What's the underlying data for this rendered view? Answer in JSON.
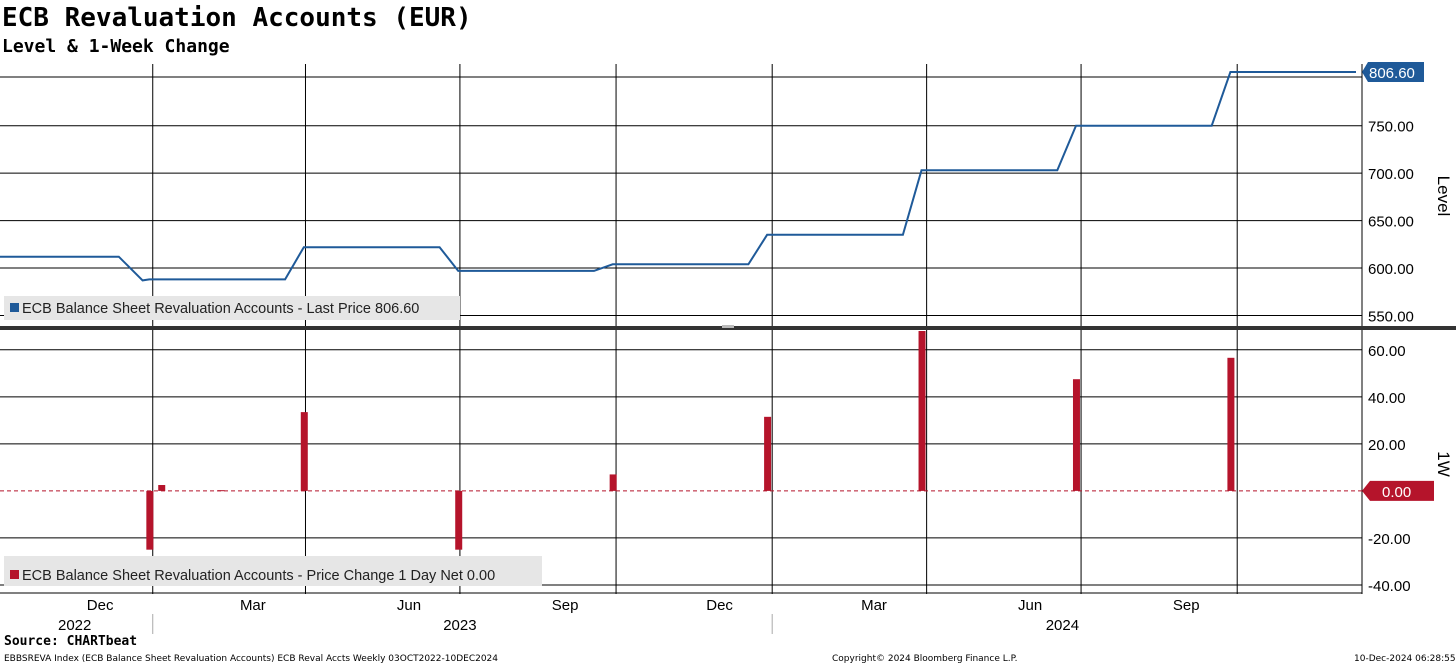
{
  "title": "ECB Revaluation Accounts (EUR)",
  "subtitle": "Level & 1-Week Change",
  "source": "Source: CHARTbeat",
  "footer": {
    "left": "EBBSREVA Index (ECB Balance Sheet Revaluation Accounts) ECB Reval Accts  Weekly 03OCT2022-10DEC2024",
    "center": "Copyright© 2024 Bloomberg Finance L.P.",
    "right": "10-Dec-2024 06:28:55"
  },
  "colors": {
    "level": "#1f5a99",
    "change": "#b5142b",
    "grid": "#000000",
    "legend_bg": "#e6e6e6"
  },
  "chart_data": [
    {
      "type": "line",
      "ylabel": "Level",
      "ylim": [
        540,
        815
      ],
      "yticks": [
        550,
        600,
        650,
        700,
        750,
        806.6
      ],
      "ytick_labels": [
        "550.00",
        "600.00",
        "650.00",
        "700.00",
        "750.00",
        "806.60"
      ],
      "last_value_label": "806.60",
      "legend": "ECB Balance Sheet Revaluation Accounts - Last Price 806.60",
      "series": [
        {
          "name": "ECB Balance Sheet Revaluation Accounts",
          "points": [
            [
              "2022-10-03",
              612
            ],
            [
              "2022-12-12",
              612
            ],
            [
              "2022-12-26",
              587
            ],
            [
              "2022-12-30",
              588
            ],
            [
              "2023-03-20",
              588
            ],
            [
              "2023-03-31",
              622
            ],
            [
              "2023-06-19",
              622
            ],
            [
              "2023-06-30",
              597
            ],
            [
              "2023-09-18",
              597
            ],
            [
              "2023-09-29",
              604
            ],
            [
              "2023-12-18",
              604
            ],
            [
              "2023-12-29",
              635
            ],
            [
              "2024-03-18",
              635
            ],
            [
              "2024-03-29",
              703
            ],
            [
              "2024-06-17",
              703
            ],
            [
              "2024-06-28",
              750
            ],
            [
              "2024-09-16",
              750
            ],
            [
              "2024-09-27",
              806.6
            ],
            [
              "2024-12-10",
              806.6
            ]
          ]
        }
      ]
    },
    {
      "type": "bar",
      "ylabel": "1W",
      "ylim": [
        -43,
        68
      ],
      "yticks": [
        -40,
        -20,
        0,
        20,
        40,
        60
      ],
      "ytick_labels": [
        "-40.00",
        "-20.00",
        "0.00",
        "20.00",
        "40.00",
        "60.00"
      ],
      "last_value_label": "0.00",
      "legend": "ECB Balance Sheet Revaluation Accounts - Price Change 1 Day Net 0.00",
      "series": [
        {
          "name": "ECB Balance Sheet Revaluation Accounts",
          "points": [
            [
              "2022-12-30",
              -25
            ],
            [
              "2023-01-06",
              2.5
            ],
            [
              "2023-02-10",
              0.3
            ],
            [
              "2023-03-31",
              33.5
            ],
            [
              "2023-06-30",
              -25
            ],
            [
              "2023-09-29",
              7
            ],
            [
              "2023-12-29",
              31.5
            ],
            [
              "2024-03-29",
              68
            ],
            [
              "2024-06-28",
              47.5
            ],
            [
              "2024-09-27",
              56.6
            ]
          ]
        }
      ]
    }
  ],
  "x_axis": {
    "start": "2022-10-03",
    "end": "2024-12-10",
    "month_labels": [
      {
        "date": "2022-12-01",
        "label": "Dec"
      },
      {
        "date": "2023-03-01",
        "label": "Mar"
      },
      {
        "date": "2023-06-01",
        "label": "Jun"
      },
      {
        "date": "2023-09-01",
        "label": "Sep"
      },
      {
        "date": "2023-12-01",
        "label": "Dec"
      },
      {
        "date": "2024-03-01",
        "label": "Mar"
      },
      {
        "date": "2024-06-01",
        "label": "Jun"
      },
      {
        "date": "2024-09-01",
        "label": "Sep"
      }
    ],
    "gridlines": [
      "2023-01-01",
      "2023-04-01",
      "2023-07-01",
      "2023-10-01",
      "2024-01-01",
      "2024-04-01",
      "2024-07-01",
      "2024-10-01"
    ],
    "year_labels": [
      {
        "label": "2022",
        "center": "2022-11-16"
      },
      {
        "label": "2023",
        "center": "2023-07-01"
      },
      {
        "label": "2024",
        "center": "2024-06-20"
      }
    ],
    "year_separators": [
      "2023-01-01",
      "2024-01-01"
    ]
  }
}
